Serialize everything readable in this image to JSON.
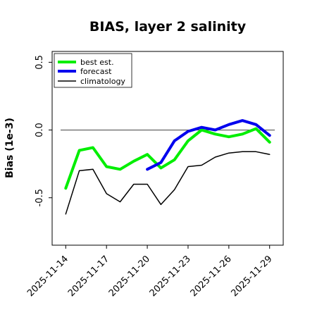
{
  "chart_data": {
    "type": "line",
    "title": "BIAS, layer 2 salinity",
    "xlabel": "",
    "ylabel": "Bias (1e-3)",
    "ylim": [
      -0.85,
      0.58
    ],
    "yticks": [
      -0.5,
      0.0,
      0.5
    ],
    "ytick_labels": [
      "-0.5",
      "0.0",
      "0.5"
    ],
    "xlim": [
      "2025-11-13",
      "2025-11-30"
    ],
    "xticks": [
      "2025-11-14",
      "2025-11-17",
      "2025-11-20",
      "2025-11-23",
      "2025-11-26",
      "2025-11-29"
    ],
    "xtick_labels": [
      "2025-11-14",
      "2025-11-17",
      "2025-11-20",
      "2025-11-23",
      "2025-11-26",
      "2025-11-29"
    ],
    "highlight_tick": "2025-11-20",
    "highlight_color": "#228b22",
    "zero_line": true,
    "grid": false,
    "legend_position": "top-left",
    "series": [
      {
        "name": "best est.",
        "color": "#00ee00",
        "linewidth": 4,
        "x": [
          "2025-11-14",
          "2025-11-15",
          "2025-11-16",
          "2025-11-17",
          "2025-11-18",
          "2025-11-19",
          "2025-11-20",
          "2025-11-21",
          "2025-11-22",
          "2025-11-23",
          "2025-11-24",
          "2025-11-25",
          "2025-11-26",
          "2025-11-27",
          "2025-11-28",
          "2025-11-29"
        ],
        "values": [
          -0.43,
          -0.15,
          -0.13,
          -0.27,
          -0.29,
          -0.23,
          -0.18,
          -0.28,
          -0.22,
          -0.08,
          0.0,
          -0.03,
          -0.05,
          -0.03,
          0.01,
          -0.09
        ]
      },
      {
        "name": "forecast",
        "color": "#0000ee",
        "linewidth": 4,
        "x": [
          "2025-11-20",
          "2025-11-21",
          "2025-11-22",
          "2025-11-23",
          "2025-11-24",
          "2025-11-25",
          "2025-11-26",
          "2025-11-27",
          "2025-11-28",
          "2025-11-29"
        ],
        "values": [
          -0.29,
          -0.24,
          -0.08,
          -0.01,
          0.02,
          0.0,
          0.04,
          0.07,
          0.04,
          -0.04
        ]
      },
      {
        "name": "climatology",
        "color": "#000000",
        "linewidth": 1.5,
        "x": [
          "2025-11-14",
          "2025-11-15",
          "2025-11-16",
          "2025-11-17",
          "2025-11-18",
          "2025-11-19",
          "2025-11-20",
          "2025-11-21",
          "2025-11-22",
          "2025-11-23",
          "2025-11-24",
          "2025-11-25",
          "2025-11-26",
          "2025-11-27",
          "2025-11-28",
          "2025-11-29"
        ],
        "values": [
          -0.62,
          -0.3,
          -0.29,
          -0.47,
          -0.53,
          -0.4,
          -0.4,
          -0.55,
          -0.44,
          -0.27,
          -0.26,
          -0.2,
          -0.17,
          -0.16,
          -0.16,
          -0.18
        ]
      }
    ]
  }
}
